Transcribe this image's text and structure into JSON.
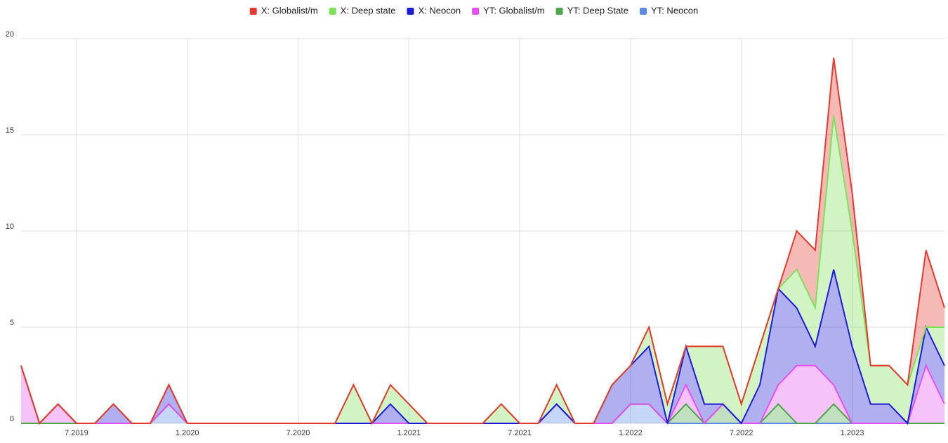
{
  "chart_data": {
    "type": "stacked_area",
    "categories": [
      null,
      null,
      null,
      "7.2019",
      null,
      null,
      null,
      null,
      null,
      "1.2020",
      null,
      null,
      null,
      null,
      null,
      "7.2020",
      null,
      null,
      null,
      null,
      null,
      "1.2021",
      null,
      null,
      null,
      null,
      null,
      "7.2021",
      null,
      null,
      null,
      null,
      null,
      "1.2022",
      null,
      null,
      null,
      null,
      null,
      "7.2022",
      null,
      null,
      null,
      null,
      null,
      "1.2023",
      null,
      null,
      null,
      null,
      null
    ],
    "series": [
      {
        "name": "X: Globalist/m",
        "color": "#e53a2f",
        "values": [
          0,
          0,
          0,
          0,
          0,
          0,
          0,
          0,
          0,
          0,
          0,
          0,
          0,
          0,
          0,
          0,
          0,
          0,
          0,
          0,
          0,
          0,
          0,
          0,
          0,
          0,
          0,
          0,
          0,
          0,
          0,
          0,
          0,
          0,
          0,
          0,
          0,
          0,
          0,
          0,
          0,
          0,
          2,
          3,
          3,
          2,
          0,
          0,
          0,
          4,
          1
        ]
      },
      {
        "name": "X: Deep state",
        "color": "#7fe05a",
        "values": [
          0,
          0,
          0,
          0,
          0,
          0,
          0,
          0,
          0,
          0,
          0,
          0,
          0,
          0,
          0,
          0,
          0,
          0,
          2,
          0,
          1,
          1,
          0,
          0,
          0,
          0,
          1,
          0,
          0,
          1,
          0,
          0,
          0,
          0,
          1,
          1,
          0,
          3,
          3,
          1,
          2,
          0,
          2,
          2,
          8,
          6,
          2,
          2,
          2,
          0,
          2
        ]
      },
      {
        "name": "X: Neocon",
        "color": "#1c1cd8",
        "values": [
          0,
          0,
          0,
          0,
          0,
          1,
          0,
          0,
          1,
          0,
          0,
          0,
          0,
          0,
          0,
          0,
          0,
          0,
          0,
          0,
          1,
          0,
          0,
          0,
          0,
          0,
          0,
          0,
          0,
          0,
          0,
          0,
          2,
          2,
          3,
          0,
          2,
          1,
          0,
          0,
          2,
          5,
          3,
          1,
          6,
          4,
          1,
          1,
          0,
          2,
          2
        ]
      },
      {
        "name": "YT: Globalist/m",
        "color": "#e64ff0",
        "values": [
          3,
          0,
          1,
          0,
          0,
          0,
          0,
          0,
          0,
          0,
          0,
          0,
          0,
          0,
          0,
          0,
          0,
          0,
          0,
          0,
          0,
          0,
          0,
          0,
          0,
          0,
          0,
          0,
          0,
          0,
          0,
          0,
          0,
          0,
          0,
          0,
          1,
          0,
          0,
          0,
          0,
          1,
          3,
          3,
          1,
          0,
          0,
          0,
          0,
          3,
          1
        ]
      },
      {
        "name": "YT: Deep State",
        "color": "#4ea64a",
        "values": [
          0,
          0,
          0,
          0,
          0,
          0,
          0,
          0,
          0,
          0,
          0,
          0,
          0,
          0,
          0,
          0,
          0,
          0,
          0,
          0,
          0,
          0,
          0,
          0,
          0,
          0,
          0,
          0,
          0,
          0,
          0,
          0,
          0,
          0,
          0,
          0,
          1,
          0,
          1,
          0,
          0,
          1,
          0,
          0,
          1,
          0,
          0,
          0,
          0,
          0,
          0
        ]
      },
      {
        "name": "YT: Neocon",
        "color": "#5a8ae6",
        "values": [
          0,
          0,
          0,
          0,
          0,
          0,
          0,
          0,
          1,
          0,
          0,
          0,
          0,
          0,
          0,
          0,
          0,
          0,
          0,
          0,
          0,
          0,
          0,
          0,
          0,
          0,
          0,
          0,
          0,
          1,
          0,
          0,
          0,
          1,
          1,
          0,
          0,
          0,
          0,
          0,
          0,
          0,
          0,
          0,
          0,
          0,
          0,
          0,
          0,
          0,
          0
        ]
      }
    ],
    "ylim": [
      0,
      20
    ],
    "yticks": [
      0,
      5,
      10,
      15,
      20
    ],
    "grid": true,
    "legend": "top"
  }
}
